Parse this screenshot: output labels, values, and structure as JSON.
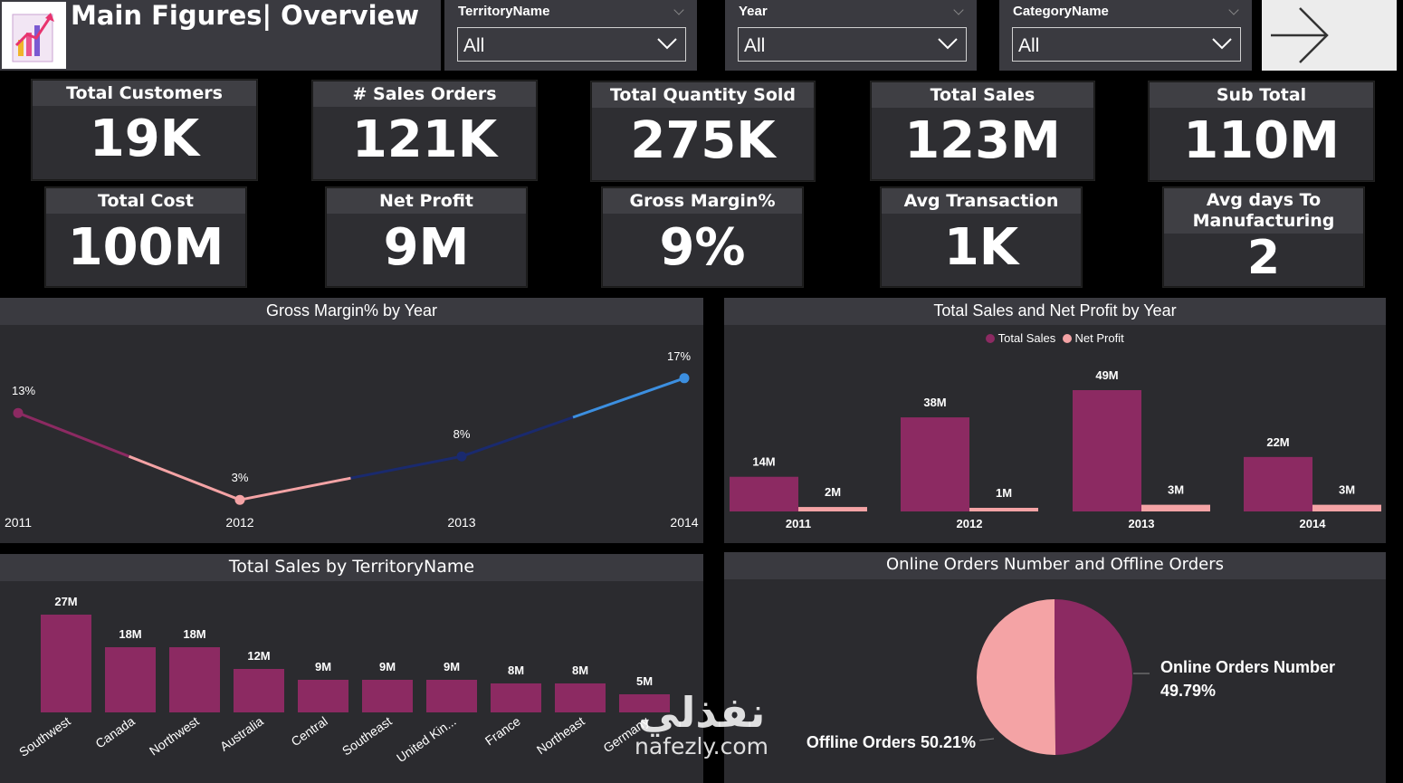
{
  "header": {
    "title": "Main Figures| Overview",
    "nav_icon": "arrow-right-icon",
    "logo_icon": "report-logo-icon"
  },
  "slicers": [
    {
      "label": "TerritoryName",
      "value": "All"
    },
    {
      "label": "Year",
      "value": "All"
    },
    {
      "label": "CategoryName",
      "value": "All"
    }
  ],
  "kpis": {
    "total_customers": {
      "label": "Total Customers",
      "value": "19K"
    },
    "sales_orders": {
      "label": "# Sales Orders",
      "value": "121K"
    },
    "total_quantity": {
      "label": "Total Quantity Sold",
      "value": "275K"
    },
    "total_sales": {
      "label": "Total Sales",
      "value": "123M"
    },
    "sub_total": {
      "label": "Sub Total",
      "value": "110M"
    },
    "total_cost": {
      "label": "Total Cost",
      "value": "100M"
    },
    "net_profit": {
      "label": "Net Profit",
      "value": "9M"
    },
    "gross_margin": {
      "label": "Gross Margin%",
      "value": "9%"
    },
    "avg_transaction": {
      "label": "Avg Transaction",
      "value": "1K"
    },
    "avg_days": {
      "label": "Avg days To Manufacturing",
      "value": "2"
    }
  },
  "colors": {
    "primary": "#8c2a62",
    "secondary": "#f4a3a5",
    "line_start": "#8c2a62",
    "line_mid": "#f4a3a5",
    "line_dark": "#1a2a6e",
    "line_end": "#3c8fe0",
    "panel_bg": "#2b2b2f",
    "title_bg": "#3a3a40"
  },
  "chart_data": [
    {
      "type": "line",
      "title": "Gross Margin% by Year",
      "x": [
        "2011",
        "2012",
        "2013",
        "2014"
      ],
      "values": [
        13,
        3,
        8,
        17
      ],
      "labels": [
        "13%",
        "3%",
        "8%",
        "17%"
      ],
      "ylim": [
        0,
        20
      ]
    },
    {
      "type": "bar",
      "title": "Total Sales and Net Profit by Year",
      "categories": [
        "2011",
        "2012",
        "2013",
        "2014"
      ],
      "series": [
        {
          "name": "Total Sales",
          "values": [
            14,
            38,
            49,
            22
          ],
          "labels": [
            "14M",
            "38M",
            "49M",
            "22M"
          ]
        },
        {
          "name": "Net Profit",
          "values": [
            2,
            1,
            3,
            3
          ],
          "labels": [
            "2M",
            "1M",
            "3M",
            "3M"
          ]
        }
      ],
      "legend": "top-center",
      "ylim": [
        0,
        55
      ]
    },
    {
      "type": "bar",
      "title": "Total Sales by TerritoryName",
      "categories": [
        "Southwest",
        "Canada",
        "Northwest",
        "Australia",
        "Central",
        "Southeast",
        "United Kin...",
        "France",
        "Northeast",
        "Germany"
      ],
      "values": [
        27,
        18,
        18,
        12,
        9,
        9,
        9,
        8,
        8,
        5
      ],
      "labels": [
        "27M",
        "18M",
        "18M",
        "12M",
        "9M",
        "9M",
        "9M",
        "8M",
        "8M",
        "5M"
      ],
      "ylim": [
        0,
        30
      ]
    },
    {
      "type": "pie",
      "title": "Online Orders Number and Offline Orders",
      "slices": [
        {
          "name": "Online Orders Number",
          "value": 49.79,
          "label": "49.79%"
        },
        {
          "name": "Offline Orders",
          "value": 50.21,
          "label": "50.21%"
        }
      ]
    }
  ],
  "watermark": {
    "arabic": "نفذلي",
    "latin": "nafezly.com"
  }
}
